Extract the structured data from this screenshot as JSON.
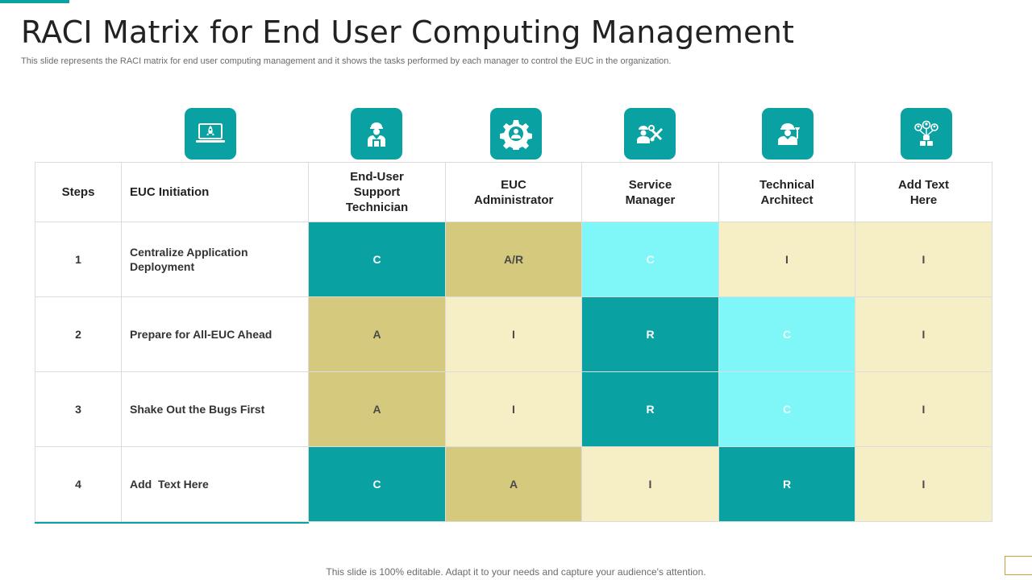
{
  "slide": {
    "title": "RACI Matrix for End User Computing Management",
    "subtitle": "This slide represents the RACI matrix for end user computing management and it shows the tasks performed by each manager to control the EUC in the organization.",
    "footer": "This slide is 100% editable. Adapt it to your needs and capture your audience's attention."
  },
  "icons": [
    "rocket-laptop-icon",
    "technician-icon",
    "gear-icon",
    "service-manager-icon",
    "architect-icon",
    "team-network-icon"
  ],
  "colors": {
    "teal": "#0aa1a3",
    "olive": "#d5c97d",
    "cream": "#f6efc6",
    "cyan": "#7ff7f8"
  },
  "table": {
    "headers": {
      "steps": "Steps",
      "task": "EUC Initiation",
      "roles": [
        "End-User Support Technician",
        "EUC Administrator",
        "Service Manager",
        "Technical Architect",
        "Add Text Here"
      ]
    },
    "rows": [
      {
        "step": "1",
        "task": "Centralize Application Deployment",
        "cells": [
          "C",
          "A/R",
          "C",
          "I",
          "I"
        ]
      },
      {
        "step": "2",
        "task": "Prepare for All-EUC Ahead",
        "cells": [
          "A",
          "I",
          "R",
          "C",
          "I"
        ]
      },
      {
        "step": "3",
        "task": "Shake Out the Bugs First",
        "cells": [
          "A",
          "I",
          "R",
          "C",
          "I"
        ]
      },
      {
        "step": "4",
        "task": "Add  Text Here",
        "cells": [
          "C",
          "A",
          "I",
          "R",
          "I"
        ]
      }
    ]
  }
}
